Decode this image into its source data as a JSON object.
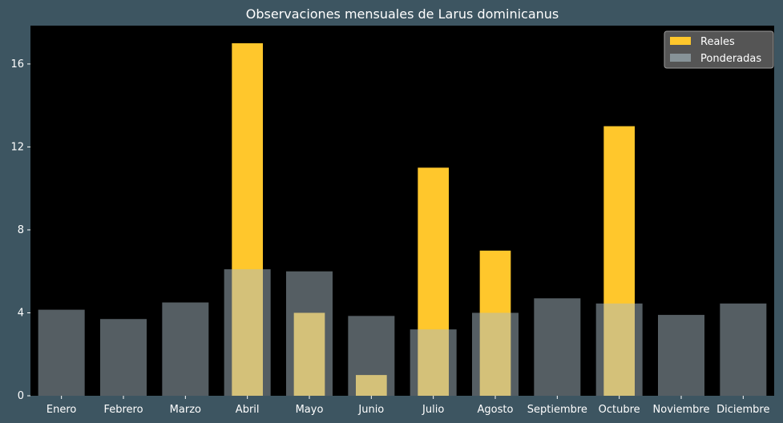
{
  "chart_data": {
    "type": "bar",
    "title": "Observaciones mensuales de Larus dominicanus",
    "xlabel": "",
    "ylabel": "",
    "categories": [
      "Enero",
      "Febrero",
      "Marzo",
      "Abril",
      "Mayo",
      "Junio",
      "Julio",
      "Agosto",
      "Septiembre",
      "Octubre",
      "Noviembre",
      "Diciembre"
    ],
    "series": [
      {
        "name": "Reales",
        "color": "#ffc72c",
        "values": [
          0,
          0,
          0,
          17,
          4,
          1,
          11,
          7,
          0,
          13,
          0,
          0
        ]
      },
      {
        "name": "Ponderadas",
        "color": "#a9bcc5",
        "opacity": 0.5,
        "values": [
          4.15,
          3.7,
          4.5,
          6.1,
          6.0,
          3.85,
          3.2,
          4.0,
          4.7,
          4.45,
          3.9,
          4.45
        ]
      }
    ],
    "ylim": [
      0,
      17.85
    ],
    "yticks": [
      0,
      4,
      8,
      12,
      16
    ],
    "legend": "top-right",
    "grid": false,
    "colors": {
      "figure_background": "#3d5561",
      "plot_background": "#000000",
      "text": "#ffffff",
      "legend_background": "#555555"
    }
  }
}
